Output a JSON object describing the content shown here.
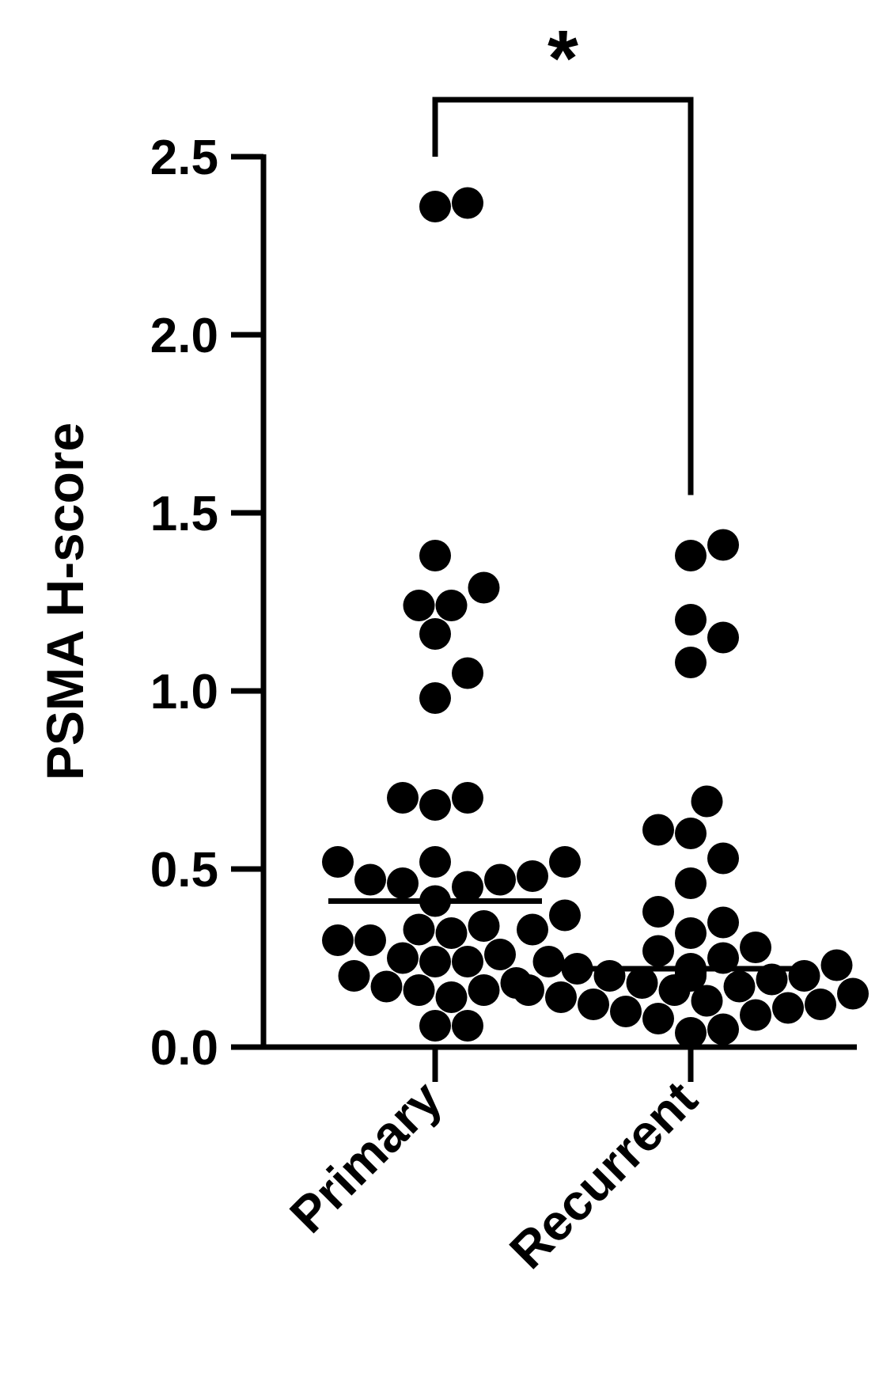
{
  "chart_data": {
    "type": "scatter",
    "title": "",
    "xlabel": "",
    "ylabel": "PSMA H-score",
    "ylim": [
      0,
      2.5
    ],
    "yticks": [
      "0.0",
      "0.5",
      "1.0",
      "1.5",
      "2.0",
      "2.5"
    ],
    "categories": [
      "Primary",
      "Recurrent"
    ],
    "grid": false,
    "legend": "none",
    "point_color": "#000000",
    "significance": {
      "label": "*",
      "between": [
        "Primary",
        "Recurrent"
      ]
    },
    "series": [
      {
        "category": "Primary",
        "median": 0.41,
        "values": [
          2.37,
          2.36,
          1.38,
          1.29,
          1.24,
          1.24,
          1.16,
          1.05,
          0.98,
          0.7,
          0.7,
          0.68,
          0.52,
          0.52,
          0.52,
          0.48,
          0.47,
          0.47,
          0.46,
          0.45,
          0.41,
          0.37,
          0.34,
          0.33,
          0.33,
          0.32,
          0.3,
          0.3,
          0.26,
          0.25,
          0.24,
          0.24,
          0.24,
          0.2,
          0.18,
          0.17,
          0.16,
          0.16,
          0.14,
          0.06,
          0.06
        ]
      },
      {
        "category": "Recurrent",
        "median": 0.22,
        "values": [
          1.41,
          1.38,
          1.2,
          1.15,
          1.08,
          0.69,
          0.61,
          0.6,
          0.53,
          0.46,
          0.38,
          0.35,
          0.32,
          0.28,
          0.27,
          0.25,
          0.23,
          0.22,
          0.22,
          0.21,
          0.21,
          0.2,
          0.2,
          0.2,
          0.19,
          0.18,
          0.17,
          0.16,
          0.16,
          0.15,
          0.14,
          0.13,
          0.12,
          0.12,
          0.11,
          0.1,
          0.09,
          0.08,
          0.05,
          0.04
        ]
      }
    ]
  }
}
